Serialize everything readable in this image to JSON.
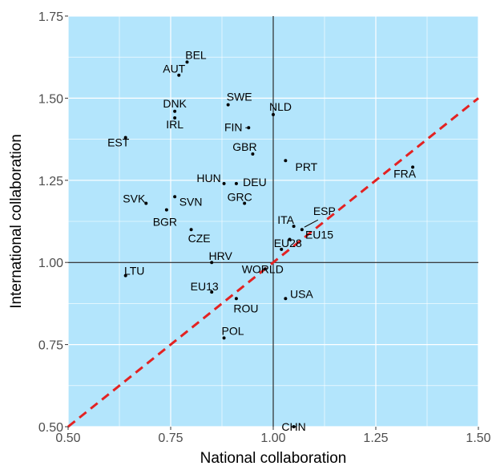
{
  "chart_data": {
    "type": "scatter",
    "xlabel": "National collaboration",
    "ylabel": "International collaboration",
    "xlim": [
      0.5,
      1.5
    ],
    "ylim": [
      0.5,
      1.75
    ],
    "x_ticks": [
      "0.50",
      "0.75",
      "1.00",
      "1.25",
      "1.50"
    ],
    "y_ticks": [
      "0.50",
      "0.75",
      "1.00",
      "1.25",
      "1.50",
      "1.75"
    ],
    "reference_lines": {
      "x": 1.0,
      "y": 1.0,
      "diagonal": "y = x"
    },
    "grid": true,
    "colors": {
      "panel": "#b3e5fc",
      "grid": "#ffffff",
      "diagonal": "#e32222",
      "points": "#000000"
    },
    "points": [
      {
        "label": "BEL",
        "x": 0.79,
        "y": 1.61
      },
      {
        "label": "AUT",
        "x": 0.77,
        "y": 1.57
      },
      {
        "label": "SWE",
        "x": 0.89,
        "y": 1.48
      },
      {
        "label": "DNK",
        "x": 0.76,
        "y": 1.46
      },
      {
        "label": "NLD",
        "x": 1.0,
        "y": 1.45
      },
      {
        "label": "IRL",
        "x": 0.76,
        "y": 1.44
      },
      {
        "label": "FIN",
        "x": 0.94,
        "y": 1.41
      },
      {
        "label": "EST",
        "x": 0.64,
        "y": 1.38
      },
      {
        "label": "GBR",
        "x": 0.95,
        "y": 1.33
      },
      {
        "label": "PRT",
        "x": 1.03,
        "y": 1.31
      },
      {
        "label": "FRA",
        "x": 1.34,
        "y": 1.29
      },
      {
        "label": "HUN",
        "x": 0.88,
        "y": 1.24
      },
      {
        "label": "DEU",
        "x": 0.91,
        "y": 1.24
      },
      {
        "label": "SVN",
        "x": 0.76,
        "y": 1.2
      },
      {
        "label": "SVK",
        "x": 0.69,
        "y": 1.18
      },
      {
        "label": "GRC",
        "x": 0.93,
        "y": 1.18
      },
      {
        "label": "BGR",
        "x": 0.74,
        "y": 1.16
      },
      {
        "label": "ITA",
        "x": 1.05,
        "y": 1.11
      },
      {
        "label": "CZE",
        "x": 0.8,
        "y": 1.1
      },
      {
        "label": "ESP",
        "x": 1.07,
        "y": 1.1
      },
      {
        "label": "EU15",
        "x": 1.04,
        "y": 1.07
      },
      {
        "label": "EU28",
        "x": 1.02,
        "y": 1.04
      },
      {
        "label": "HRV",
        "x": 0.85,
        "y": 1.0
      },
      {
        "label": "WORLD",
        "x": 0.98,
        "y": 0.98
      },
      {
        "label": "LTU",
        "x": 0.64,
        "y": 0.96
      },
      {
        "label": "EU13",
        "x": 0.85,
        "y": 0.91
      },
      {
        "label": "USA",
        "x": 1.03,
        "y": 0.89
      },
      {
        "label": "ROU",
        "x": 0.91,
        "y": 0.89
      },
      {
        "label": "POL",
        "x": 0.88,
        "y": 0.77
      },
      {
        "label": "CHN",
        "x": 1.05,
        "y": 0.5
      }
    ]
  }
}
